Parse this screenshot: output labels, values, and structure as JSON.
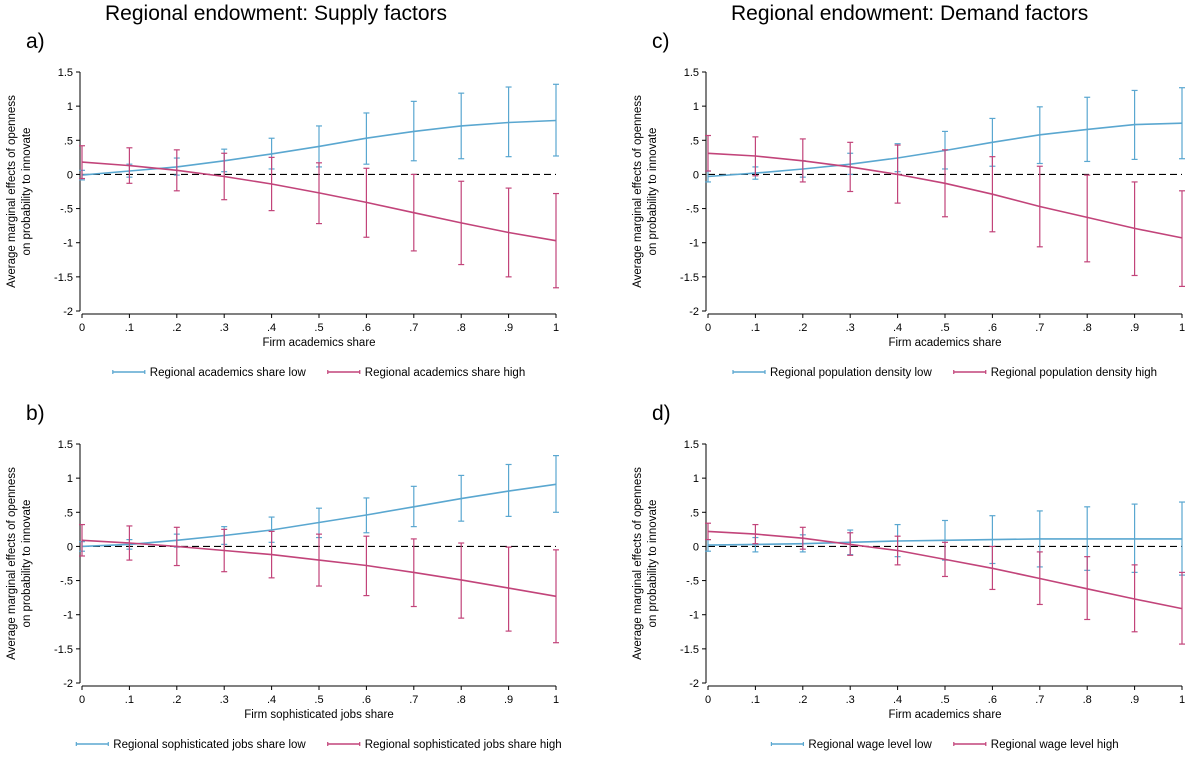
{
  "headings": {
    "left": "Regional endowment: Supply factors",
    "right": "Regional endowment: Demand factors"
  },
  "colors": {
    "low": "#5aa7d0",
    "high": "#c2447a",
    "zero_line": "#000000"
  },
  "chart_data": [
    {
      "id": "a",
      "type": "line",
      "letter": "a)",
      "xlabel": "Firm academics share",
      "ylabel_line1": "Average marginal effects of openness",
      "ylabel_line2": "on probability to innovate",
      "xlim": [
        0,
        1
      ],
      "ylim": [
        -2,
        1.5
      ],
      "x": [
        0,
        0.1,
        0.2,
        0.3,
        0.4,
        0.5,
        0.6,
        0.7,
        0.8,
        0.9,
        1
      ],
      "x_tick_labels": [
        "0",
        ".1",
        ".2",
        ".3",
        ".4",
        ".5",
        ".6",
        ".7",
        ".8",
        ".9",
        "1"
      ],
      "y_ticks": [
        1.5,
        1,
        0.5,
        0,
        -0.5,
        -1,
        -1.5,
        -2
      ],
      "y_tick_labels": [
        "1.5",
        "1",
        ".5",
        "0",
        "-.5",
        "-1",
        "-1.5",
        "-2"
      ],
      "series": [
        {
          "name": "Regional academics share low",
          "values": [
            -0.01,
            0.05,
            0.11,
            0.2,
            0.3,
            0.41,
            0.53,
            0.63,
            0.71,
            0.76,
            0.79
          ],
          "lower": [
            -0.08,
            -0.04,
            -0.01,
            0.04,
            0.08,
            0.11,
            0.15,
            0.2,
            0.23,
            0.26,
            0.27
          ],
          "upper": [
            0.06,
            0.15,
            0.24,
            0.37,
            0.53,
            0.71,
            0.9,
            1.07,
            1.19,
            1.28,
            1.32
          ]
        },
        {
          "name": "Regional academics share high",
          "values": [
            0.18,
            0.13,
            0.06,
            -0.03,
            -0.14,
            -0.27,
            -0.41,
            -0.56,
            -0.71,
            -0.85,
            -0.97
          ],
          "lower": [
            -0.06,
            -0.13,
            -0.24,
            -0.37,
            -0.53,
            -0.72,
            -0.92,
            -1.12,
            -1.32,
            -1.5,
            -1.66
          ],
          "upper": [
            0.42,
            0.39,
            0.36,
            0.31,
            0.25,
            0.17,
            0.09,
            0.0,
            -0.1,
            -0.2,
            -0.28
          ]
        }
      ]
    },
    {
      "id": "c",
      "type": "line",
      "letter": "c)",
      "xlabel": "Firm academics share",
      "ylabel_line1": "Average marginal effects of openness",
      "ylabel_line2": "on probability to innovate",
      "xlim": [
        0,
        1
      ],
      "ylim": [
        -2,
        1.5
      ],
      "x": [
        0,
        0.1,
        0.2,
        0.3,
        0.4,
        0.5,
        0.6,
        0.7,
        0.8,
        0.9,
        1
      ],
      "x_tick_labels": [
        "0",
        ".1",
        ".2",
        ".3",
        ".4",
        ".5",
        ".6",
        ".7",
        ".8",
        ".9",
        "1"
      ],
      "y_ticks": [
        1.5,
        1,
        0.5,
        0,
        -0.5,
        -1,
        -1.5,
        -2
      ],
      "y_tick_labels": [
        "1.5",
        "1",
        ".5",
        "0",
        "-.5",
        "-1",
        "-1.5",
        "-2"
      ],
      "series": [
        {
          "name": "Regional population density low",
          "values": [
            -0.03,
            0.02,
            0.08,
            0.15,
            0.24,
            0.35,
            0.47,
            0.58,
            0.66,
            0.73,
            0.75
          ],
          "lower": [
            -0.11,
            -0.07,
            -0.04,
            0.0,
            0.04,
            0.08,
            0.12,
            0.16,
            0.19,
            0.22,
            0.23
          ],
          "upper": [
            0.05,
            0.11,
            0.2,
            0.31,
            0.45,
            0.63,
            0.82,
            0.99,
            1.13,
            1.23,
            1.27
          ]
        },
        {
          "name": "Regional population density high",
          "values": [
            0.31,
            0.27,
            0.2,
            0.11,
            0.0,
            -0.13,
            -0.29,
            -0.47,
            -0.63,
            -0.79,
            -0.93
          ],
          "lower": [
            0.05,
            -0.02,
            -0.11,
            -0.25,
            -0.42,
            -0.62,
            -0.84,
            -1.06,
            -1.28,
            -1.48,
            -1.64
          ],
          "upper": [
            0.57,
            0.55,
            0.52,
            0.47,
            0.43,
            0.36,
            0.26,
            0.12,
            -0.01,
            -0.11,
            -0.24
          ]
        }
      ]
    },
    {
      "id": "b",
      "type": "line",
      "letter": "b)",
      "xlabel": "Firm sophisticated jobs share",
      "ylabel_line1": "Average marginal effects of openness",
      "ylabel_line2": "on probability to innovate",
      "xlim": [
        0,
        1
      ],
      "ylim": [
        -2,
        1.5
      ],
      "x": [
        0,
        0.1,
        0.2,
        0.3,
        0.4,
        0.5,
        0.6,
        0.7,
        0.8,
        0.9,
        1
      ],
      "x_tick_labels": [
        "0",
        ".1",
        ".2",
        ".3",
        ".4",
        ".5",
        ".6",
        ".7",
        ".8",
        ".9",
        "1"
      ],
      "y_ticks": [
        1.5,
        1,
        0.5,
        0,
        -0.5,
        -1,
        -1.5,
        -2
      ],
      "y_tick_labels": [
        "1.5",
        "1",
        ".5",
        "0",
        "-.5",
        "-1",
        "-1.5",
        "-2"
      ],
      "series": [
        {
          "name": "Regional sophisticated jobs share low",
          "values": [
            0.0,
            0.03,
            0.09,
            0.16,
            0.24,
            0.35,
            0.46,
            0.58,
            0.7,
            0.81,
            0.91
          ],
          "lower": [
            -0.07,
            -0.04,
            -0.01,
            0.03,
            0.06,
            0.13,
            0.2,
            0.29,
            0.37,
            0.44,
            0.5
          ],
          "upper": [
            0.07,
            0.1,
            0.18,
            0.29,
            0.43,
            0.56,
            0.71,
            0.88,
            1.04,
            1.2,
            1.33
          ]
        },
        {
          "name": "Regional sophisticated jobs share high",
          "values": [
            0.09,
            0.05,
            0.0,
            -0.06,
            -0.12,
            -0.2,
            -0.28,
            -0.38,
            -0.49,
            -0.61,
            -0.73
          ],
          "lower": [
            -0.14,
            -0.2,
            -0.28,
            -0.37,
            -0.46,
            -0.58,
            -0.72,
            -0.88,
            -1.05,
            -1.24,
            -1.41
          ],
          "upper": [
            0.32,
            0.3,
            0.28,
            0.25,
            0.22,
            0.18,
            0.15,
            0.11,
            0.05,
            -0.01,
            -0.05
          ]
        }
      ]
    },
    {
      "id": "d",
      "type": "line",
      "letter": "d)",
      "xlabel": "Firm academics share",
      "ylabel_line1": "Average marginal effects of openness",
      "ylabel_line2": "on probability to innovate",
      "xlim": [
        0,
        1
      ],
      "ylim": [
        -2,
        1.5
      ],
      "x": [
        0,
        0.1,
        0.2,
        0.3,
        0.4,
        0.5,
        0.6,
        0.7,
        0.8,
        0.9,
        1
      ],
      "x_tick_labels": [
        "0",
        ".1",
        ".2",
        ".3",
        ".4",
        ".5",
        ".6",
        ".7",
        ".8",
        ".9",
        "1"
      ],
      "y_ticks": [
        1.5,
        1,
        0.5,
        0,
        -0.5,
        -1,
        -1.5,
        -2
      ],
      "y_tick_labels": [
        "1.5",
        "1",
        ".5",
        "0",
        "-.5",
        "-1",
        "-1.5",
        "-2"
      ],
      "series": [
        {
          "name": "Regional wage level low",
          "values": [
            0.02,
            0.03,
            0.04,
            0.06,
            0.08,
            0.09,
            0.1,
            0.11,
            0.11,
            0.11,
            0.11
          ],
          "lower": [
            -0.07,
            -0.08,
            -0.08,
            -0.12,
            -0.15,
            -0.2,
            -0.25,
            -0.3,
            -0.35,
            -0.38,
            -0.42
          ],
          "upper": [
            0.1,
            0.13,
            0.17,
            0.24,
            0.32,
            0.38,
            0.45,
            0.52,
            0.58,
            0.62,
            0.65
          ]
        },
        {
          "name": "Regional wage level high",
          "values": [
            0.22,
            0.18,
            0.12,
            0.03,
            -0.06,
            -0.19,
            -0.32,
            -0.47,
            -0.62,
            -0.77,
            -0.91
          ],
          "lower": [
            0.1,
            0.04,
            -0.04,
            -0.13,
            -0.27,
            -0.44,
            -0.63,
            -0.85,
            -1.07,
            -1.25,
            -1.43
          ],
          "upper": [
            0.34,
            0.32,
            0.28,
            0.2,
            0.15,
            0.06,
            0.0,
            -0.08,
            -0.15,
            -0.27,
            -0.38
          ]
        }
      ]
    }
  ]
}
